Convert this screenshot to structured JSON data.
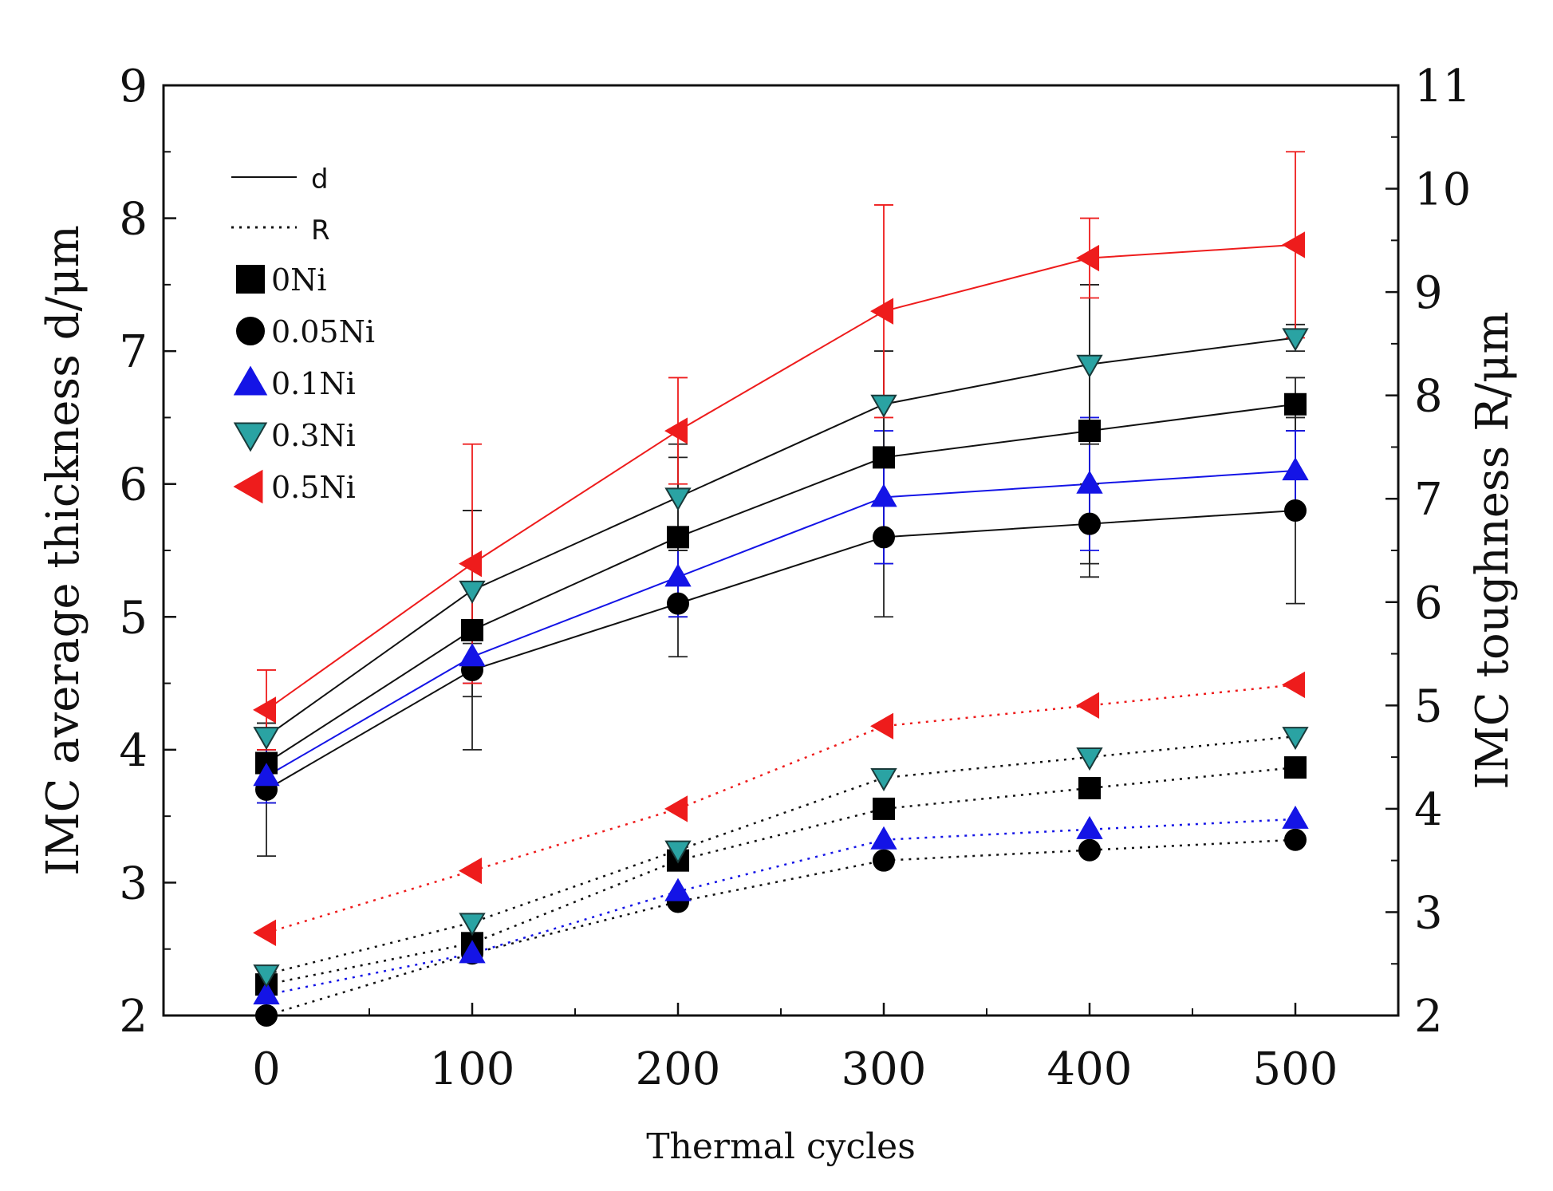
{
  "chart_data": {
    "type": "line",
    "title": "",
    "xlabel": "Thermal cycles",
    "ylabel_left": "IMC average thickness d/μm",
    "ylabel_right": "IMC toughness R/μm",
    "x": [
      0,
      100,
      200,
      300,
      400,
      500
    ],
    "x_ticks": [
      "0",
      "100",
      "200",
      "300",
      "400",
      "500"
    ],
    "xlim": [
      -50,
      550
    ],
    "ylim_left": [
      2,
      9
    ],
    "ylim_right": [
      2,
      11
    ],
    "y_ticks_left": [
      "2",
      "3",
      "4",
      "5",
      "6",
      "7",
      "8",
      "9"
    ],
    "y_ticks_right": [
      "2",
      "3",
      "4",
      "5",
      "6",
      "7",
      "8",
      "9",
      "10",
      "11"
    ],
    "legend": {
      "line_styles": [
        {
          "label": "d",
          "style": "solid"
        },
        {
          "label": "R",
          "style": "dotted"
        }
      ],
      "placement": "top-left"
    },
    "series": [
      {
        "name": "0Ni",
        "marker": "square",
        "color": "#000000",
        "edge": "#000000",
        "d": [
          3.9,
          4.9,
          5.6,
          6.2,
          6.4,
          6.6
        ],
        "d_err": [
          0.3,
          0.9,
          0.6,
          0.8,
          1.1,
          0.2
        ],
        "R": [
          2.3,
          2.7,
          3.5,
          4.0,
          4.2,
          4.4
        ]
      },
      {
        "name": "0.05Ni",
        "marker": "circle",
        "color": "#000000",
        "edge": "#000000",
        "d": [
          3.7,
          4.6,
          5.1,
          5.6,
          5.7,
          5.8
        ],
        "d_err": [
          0.5,
          0.2,
          0.4,
          0.6,
          0.3,
          0.7
        ],
        "R": [
          2.0,
          2.6,
          3.1,
          3.5,
          3.6,
          3.7
        ]
      },
      {
        "name": "0.1Ni",
        "marker": "triangle-up",
        "color": "#1414e6",
        "edge": "#1414e6",
        "d": [
          3.8,
          4.7,
          5.3,
          5.9,
          6.0,
          6.1
        ],
        "d_err": [
          0.2,
          0.2,
          0.3,
          0.5,
          0.5,
          0.3
        ],
        "R": [
          2.2,
          2.6,
          3.2,
          3.7,
          3.8,
          3.9
        ]
      },
      {
        "name": "0.3Ni",
        "marker": "triangle-down",
        "color": "#2aa3a3",
        "edge": "#1a3a3a",
        "d": [
          4.1,
          5.2,
          5.9,
          6.6,
          6.9,
          7.1
        ],
        "d_err": [
          0.1,
          0.6,
          0.4,
          0.4,
          0.6,
          0.1
        ],
        "R": [
          2.4,
          2.9,
          3.6,
          4.3,
          4.5,
          4.7
        ]
      },
      {
        "name": "0.5Ni",
        "marker": "triangle-left",
        "color": "#ee1c1c",
        "edge": "#ee1c1c",
        "d": [
          4.3,
          5.4,
          6.4,
          7.3,
          7.7,
          7.8
        ],
        "d_err": [
          0.3,
          0.9,
          0.4,
          0.8,
          0.3,
          0.7
        ],
        "R": [
          2.8,
          3.4,
          4.0,
          4.8,
          5.0,
          5.2
        ]
      }
    ]
  }
}
